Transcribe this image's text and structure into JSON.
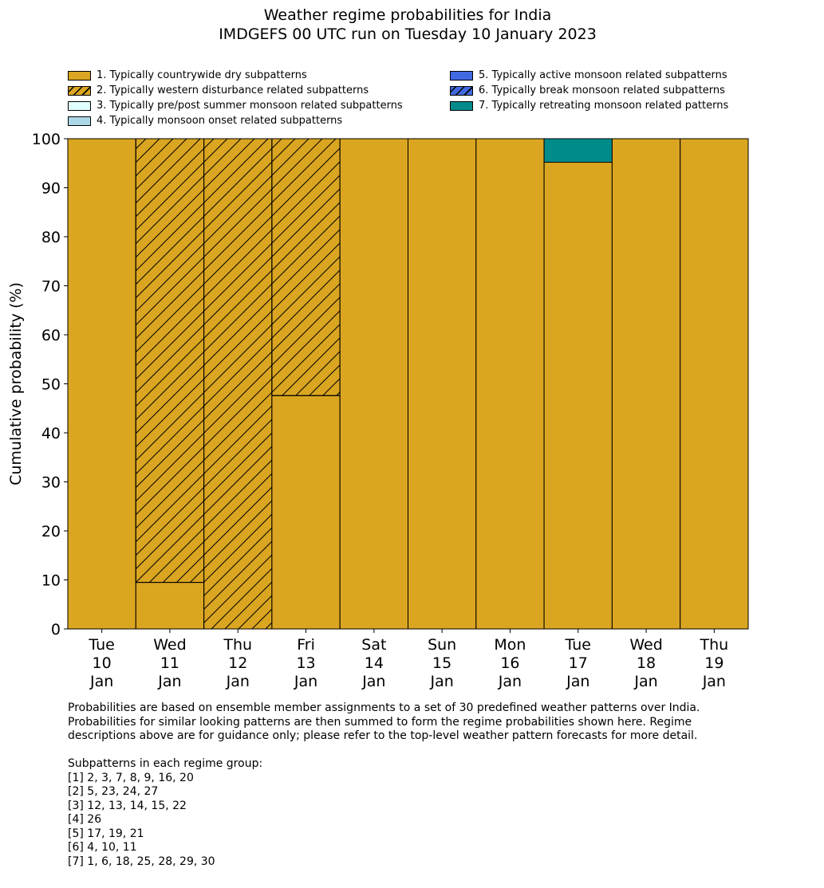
{
  "chart_data": {
    "type": "bar",
    "stacked": true,
    "title": "Weather regime probabilities for India",
    "subtitle": "IMDGEFS 00 UTC run on Tuesday 10 January 2023",
    "ylabel": "Cumulative probability (%)",
    "xlabel": "",
    "ylim": [
      0,
      100
    ],
    "yticks": [
      0,
      10,
      20,
      30,
      40,
      50,
      60,
      70,
      80,
      90,
      100
    ],
    "grid": false,
    "legend_placement": "top",
    "categories": [
      [
        "Tue",
        "10",
        "Jan"
      ],
      [
        "Wed",
        "11",
        "Jan"
      ],
      [
        "Thu",
        "12",
        "Jan"
      ],
      [
        "Fri",
        "13",
        "Jan"
      ],
      [
        "Sat",
        "14",
        "Jan"
      ],
      [
        "Sun",
        "15",
        "Jan"
      ],
      [
        "Mon",
        "16",
        "Jan"
      ],
      [
        "Tue",
        "17",
        "Jan"
      ],
      [
        "Wed",
        "18",
        "Jan"
      ],
      [
        "Thu",
        "19",
        "Jan"
      ]
    ],
    "series": [
      {
        "name": "1. Typically countrywide dry subpatterns",
        "color": "#DAA520",
        "hatch": false,
        "values": [
          100,
          9.5,
          0,
          47.6,
          100,
          100,
          100,
          95.2,
          100,
          100
        ]
      },
      {
        "name": "2. Typically western disturbance related subpatterns",
        "color": "#DAA520",
        "hatch": true,
        "values": [
          0,
          90.5,
          100,
          52.4,
          0,
          0,
          0,
          0,
          0,
          0
        ]
      },
      {
        "name": "3. Typically pre/post summer monsoon related subpatterns",
        "color": "#E0FFFF",
        "hatch": false,
        "values": [
          0,
          0,
          0,
          0,
          0,
          0,
          0,
          0,
          0,
          0
        ]
      },
      {
        "name": "4. Typically monsoon onset related subpatterns",
        "color": "#ADD8E6",
        "hatch": false,
        "values": [
          0,
          0,
          0,
          0,
          0,
          0,
          0,
          0,
          0,
          0
        ]
      },
      {
        "name": "5. Typically active monsoon related subpatterns",
        "color": "#4169E1",
        "hatch": false,
        "values": [
          0,
          0,
          0,
          0,
          0,
          0,
          0,
          0,
          0,
          0
        ]
      },
      {
        "name": "6. Typically break monsoon related subpatterns",
        "color": "#4169E1",
        "hatch": true,
        "values": [
          0,
          0,
          0,
          0,
          0,
          0,
          0,
          0,
          0,
          0
        ]
      },
      {
        "name": "7. Typically retreating monsoon related patterns",
        "color": "#008B8B",
        "hatch": false,
        "values": [
          0,
          0,
          0,
          0,
          0,
          0,
          0,
          4.8,
          0,
          0
        ]
      }
    ]
  },
  "notes": {
    "lines": [
      "Probabilities are based on ensemble member assignments to a set of 30 predefined weather patterns over India.",
      "Probabilities for similar looking patterns are then summed to form the regime probabilities shown here. Regime",
      "descriptions above are for guidance only; please refer to the top-level weather pattern forecasts for more detail.",
      "",
      "Subpatterns in each regime group:",
      "[1] 2, 3, 7, 8, 9, 16, 20",
      "[2] 5, 23, 24, 27",
      "[3] 12, 13, 14, 15, 22",
      "[4] 26",
      "[5] 17, 19, 21",
      "[6] 4, 10, 11",
      "[7] 1, 6, 18, 25, 28, 29, 30"
    ]
  }
}
